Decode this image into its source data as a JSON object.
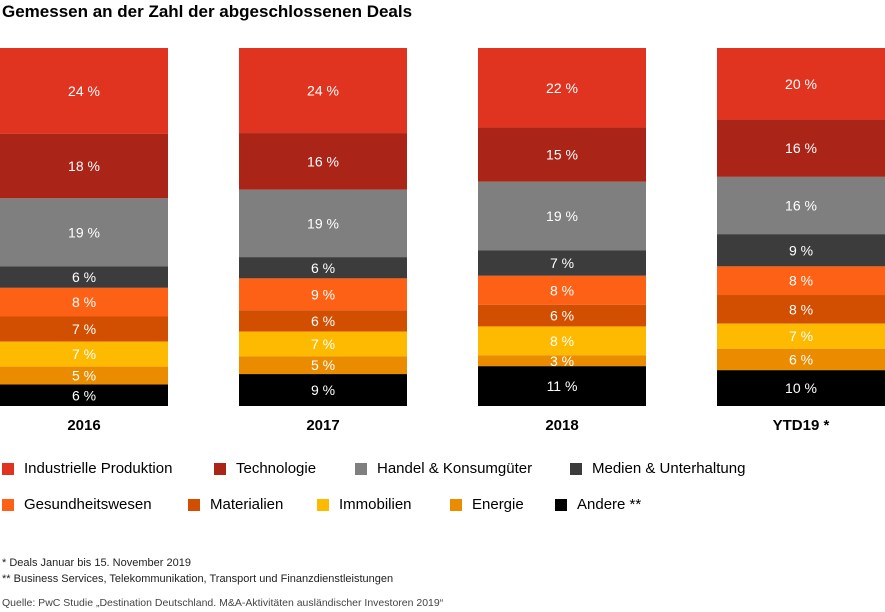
{
  "title": "Gemessen an der Zahl der abgeschlossenen Deals",
  "chart_data": {
    "type": "bar",
    "stacked": true,
    "percent_stacked": true,
    "categories": [
      "2016",
      "2017",
      "2018",
      "YTD19 *"
    ],
    "value_suffix": " %",
    "series": [
      {
        "name": "Industrielle Produktion",
        "color": "#e03420",
        "values": [
          24,
          24,
          22,
          20
        ]
      },
      {
        "name": "Technologie",
        "color": "#aa2418",
        "values": [
          18,
          16,
          15,
          16
        ]
      },
      {
        "name": "Handel & Konsumgüter",
        "color": "#7f7f7f",
        "values": [
          19,
          19,
          19,
          16
        ]
      },
      {
        "name": "Medien & Unterhaltung",
        "color": "#3c3c3c",
        "values": [
          6,
          6,
          7,
          9
        ]
      },
      {
        "name": "Gesundheitswesen",
        "color": "#fd6116",
        "values": [
          8,
          9,
          8,
          8
        ]
      },
      {
        "name": "Materialien",
        "color": "#d24e00",
        "values": [
          7,
          6,
          6,
          8
        ]
      },
      {
        "name": "Immobilien",
        "color": "#fdba00",
        "values": [
          7,
          7,
          8,
          7
        ]
      },
      {
        "name": "Energie",
        "color": "#eb8c00",
        "values": [
          5,
          5,
          3,
          6
        ]
      },
      {
        "name": "Andere **",
        "color": "#000000",
        "values": [
          6,
          9,
          11,
          10
        ]
      }
    ],
    "label_color": "#ffffff",
    "legend_placement": "bottom",
    "grid": false
  },
  "notes": [
    "* Deals Januar bis 15. November 2019",
    "** Business Services, Telekommunikation, Transport und Finanzdienstleistungen"
  ],
  "source": "Quelle: PwC Studie „Destination Deutschland. M&A-Aktivitäten ausländischer Investoren 2019“"
}
